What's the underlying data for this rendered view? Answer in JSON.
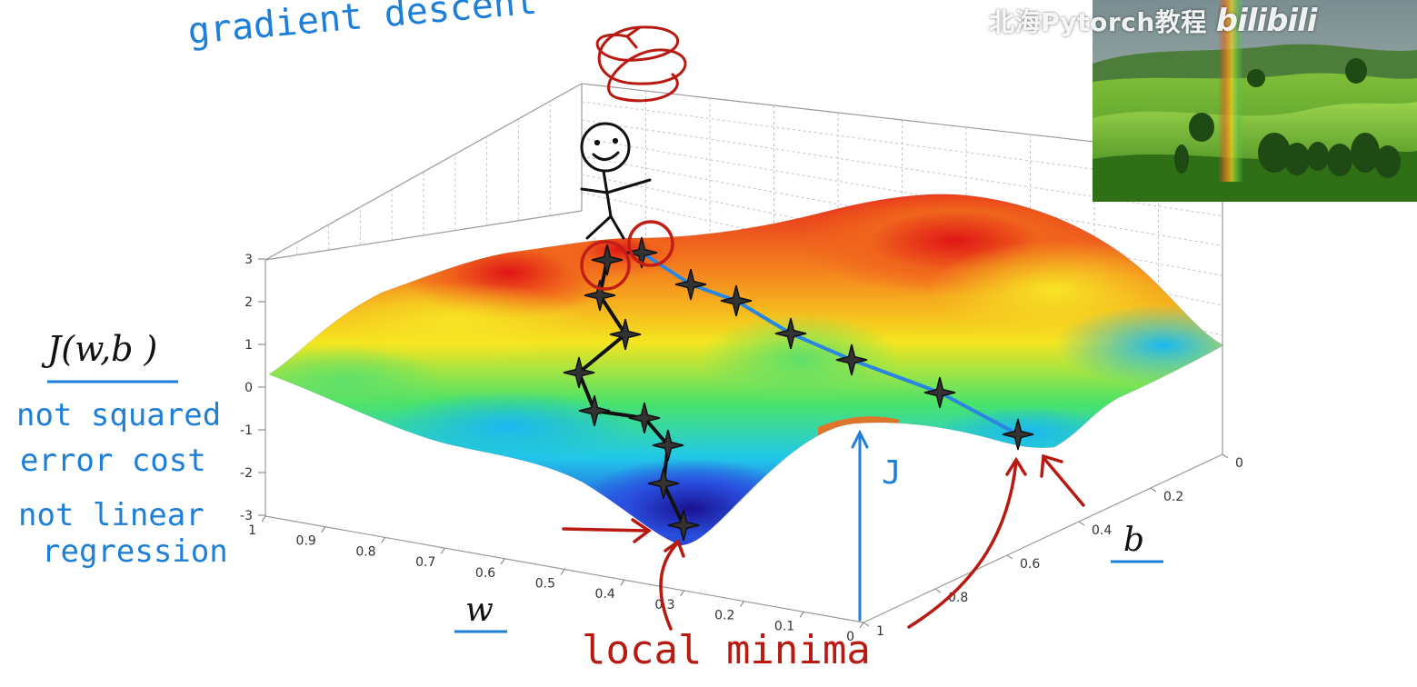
{
  "annotations": {
    "title": "gradient descent",
    "axis_label_w": "w",
    "axis_label_b": "b",
    "axis_label_cost": "J(w,b )",
    "note_1": "not squared",
    "note_2": "error cost",
    "note_3": "not linear",
    "note_4": "regression",
    "surface_label": "J",
    "minimum_label": "local minima"
  },
  "axes": {
    "z_ticks": [
      "3",
      "2",
      "1",
      "0",
      "-1",
      "-2",
      "-3"
    ],
    "w_ticks": [
      "1",
      "0.9",
      "0.8",
      "0.7",
      "0.6",
      "0.5",
      "0.4",
      "0.3",
      "0.2",
      "0.1",
      "0"
    ],
    "b_ticks": [
      "0",
      "0.2",
      "0.4",
      "0.6",
      "0.8",
      "1"
    ]
  },
  "watermark": {
    "text": "北海Pytorch教程",
    "logo": "bilibili"
  },
  "colors": {
    "annotation_blue": "#1e7fd8",
    "annotation_red": "#b81a12",
    "surface_high": "#e8221a",
    "surface_mid": "#f5e11f",
    "surface_low": "#1a1fb8",
    "path_blue": "#2a86e0",
    "path_black": "#111111"
  }
}
